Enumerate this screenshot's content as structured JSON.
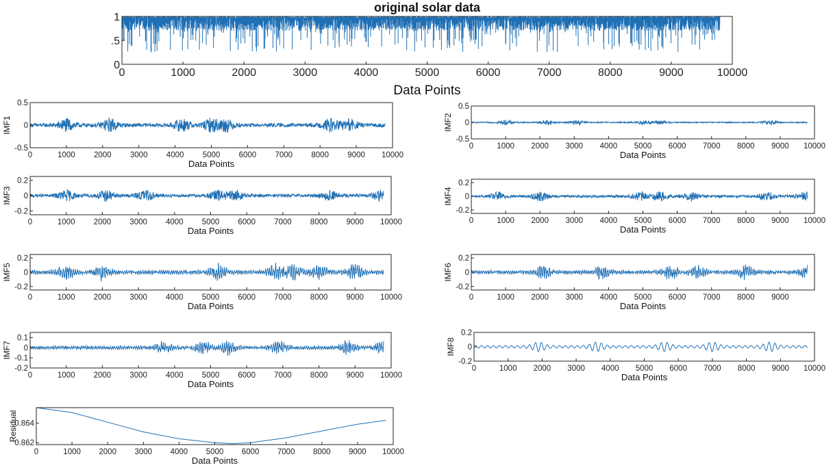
{
  "chart_data": [
    {
      "id": "original",
      "type": "line",
      "title": "original solar data",
      "xlabel": "Data Points",
      "ylabel": "",
      "xlim": [
        0,
        10000
      ],
      "ylim": [
        0,
        1
      ],
      "xticks": [
        0,
        1000,
        2000,
        3000,
        4000,
        5000,
        6000,
        7000,
        8000,
        9000,
        10000
      ],
      "xtick_labels": [
        "0",
        "1000",
        "2000",
        "3000",
        "4000",
        "5000",
        "6000",
        "7000",
        "8000",
        "9000",
        "10000"
      ],
      "yticks": [
        0,
        0.5,
        1
      ],
      "ytick_labels": [
        "0",
        ".5",
        "1"
      ],
      "n_points": 9800,
      "signal": "spiky",
      "amplitude": 0.75,
      "color": "#1f6fb4"
    },
    {
      "id": "imf1",
      "type": "line",
      "xlabel": "Data Points",
      "ylabel": "IMF1",
      "xlim": [
        0,
        10000
      ],
      "ylim": [
        -0.5,
        0.5
      ],
      "xticks": [
        0,
        1000,
        2000,
        3000,
        4000,
        5000,
        6000,
        7000,
        8000,
        9000,
        10000
      ],
      "xtick_labels": [
        "0",
        "1000",
        "2000",
        "3000",
        "4000",
        "5000",
        "6000",
        "7000",
        "8000",
        "9000",
        "10000"
      ],
      "yticks": [
        -0.5,
        0,
        0.5
      ],
      "ytick_labels": [
        "-0.5",
        "0",
        "0.5"
      ],
      "n_points": 9800,
      "signal": "noise",
      "amplitude": 0.2,
      "bursts": [
        1000,
        2200,
        4200,
        5000,
        5400,
        8300,
        8800
      ],
      "color": "#1f6fb4"
    },
    {
      "id": "imf2",
      "type": "line",
      "xlabel": "Data Points",
      "ylabel": "IMF2",
      "xlim": [
        0,
        10000
      ],
      "ylim": [
        -0.5,
        0.5
      ],
      "xticks": [
        0,
        1000,
        2000,
        3000,
        4000,
        5000,
        6000,
        7000,
        8000,
        9000,
        10000
      ],
      "xtick_labels": [
        "0",
        "1000",
        "2000",
        "3000",
        "4000",
        "5000",
        "6000",
        "7000",
        "8000",
        "9000",
        "10000"
      ],
      "yticks": [
        -0.5,
        0,
        0.5
      ],
      "ytick_labels": [
        "-0.5",
        "0",
        "0.5"
      ],
      "n_points": 9800,
      "signal": "noise",
      "amplitude": 0.09,
      "bursts": [
        1000,
        2200,
        3100,
        5000,
        5500,
        8700
      ],
      "color": "#1f6fb4"
    },
    {
      "id": "imf3",
      "type": "line",
      "xlabel": "Data Points",
      "ylabel": "IMF3",
      "xlim": [
        0,
        10000
      ],
      "ylim": [
        -0.25,
        0.25
      ],
      "xticks": [
        0,
        1000,
        2000,
        3000,
        4000,
        5000,
        6000,
        7000,
        8000,
        9000,
        10000
      ],
      "xtick_labels": [
        "0",
        "1000",
        "2000",
        "3000",
        "4000",
        "5000",
        "6000",
        "7000",
        "8000",
        "9000",
        "10000"
      ],
      "yticks": [
        -0.2,
        0,
        0.2
      ],
      "ytick_labels": [
        "-0.2",
        "0",
        "0.2"
      ],
      "n_points": 9800,
      "signal": "noise",
      "amplitude": 0.1,
      "bursts": [
        1000,
        2100,
        3200,
        5200,
        5700,
        8300,
        9700
      ],
      "color": "#1f6fb4"
    },
    {
      "id": "imf4",
      "type": "line",
      "xlabel": "Data Points",
      "ylabel": "IMF4",
      "xlim": [
        0,
        10000
      ],
      "ylim": [
        -0.25,
        0.25
      ],
      "xticks": [
        0,
        1000,
        2000,
        3000,
        4000,
        5000,
        6000,
        7000,
        8000,
        9000,
        10000
      ],
      "xtick_labels": [
        "0",
        "1000",
        "2000",
        "3000",
        "4000",
        "5000",
        "6000",
        "7000",
        "8000",
        "9000",
        "10000"
      ],
      "yticks": [
        -0.2,
        0,
        0.2
      ],
      "ytick_labels": [
        "-0.2",
        "0",
        "0.2"
      ],
      "n_points": 9800,
      "signal": "noise",
      "amplitude": 0.09,
      "bursts": [
        800,
        2000,
        4900,
        5500,
        6400,
        8600,
        9700
      ],
      "color": "#1f6fb4"
    },
    {
      "id": "imf5",
      "type": "line",
      "xlabel": "Data  Points",
      "ylabel": "IMF5",
      "xlim": [
        0,
        10000
      ],
      "ylim": [
        -0.25,
        0.25
      ],
      "xticks": [
        0,
        1000,
        2000,
        3000,
        4000,
        5000,
        6000,
        7000,
        8000,
        9000,
        10000
      ],
      "xtick_labels": [
        "0",
        "1000",
        "2000",
        "3000",
        "4000",
        "5000",
        "6000",
        "7000",
        "8000",
        "9000",
        "10000"
      ],
      "yticks": [
        -0.2,
        0,
        0.2
      ],
      "ytick_labels": [
        "-0.2",
        "0",
        "0.2"
      ],
      "n_points": 9800,
      "signal": "oscillation",
      "amplitude": 0.1,
      "bursts": [
        1000,
        2000,
        5200,
        6800,
        7300,
        8000,
        9000
      ],
      "color": "#1f6fb4"
    },
    {
      "id": "imf6",
      "type": "line",
      "xlabel": "Data  Points",
      "ylabel": "IMF6",
      "xlim": [
        0,
        10000
      ],
      "ylim": [
        -0.25,
        0.25
      ],
      "xticks": [
        0,
        1000,
        2000,
        3000,
        4000,
        5000,
        6000,
        7000,
        8000,
        9000
      ],
      "xtick_labels": [
        "0",
        "1000",
        "2000",
        "3000",
        "4000",
        "5000",
        "6000",
        "7000",
        "8000",
        "9000"
      ],
      "yticks": [
        -0.2,
        0,
        0.2
      ],
      "ytick_labels": [
        "-0.2",
        "0",
        "0.2"
      ],
      "n_points": 9800,
      "signal": "oscillation",
      "amplitude": 0.09,
      "bursts": [
        2100,
        3800,
        5800,
        6600,
        8000,
        9800
      ],
      "color": "#1f6fb4"
    },
    {
      "id": "imf7",
      "type": "line",
      "xlabel": "Data Points",
      "ylabel": "IMF7",
      "xlim": [
        0,
        10000
      ],
      "ylim": [
        -0.2,
        0.15
      ],
      "xticks": [
        0,
        1000,
        2000,
        3000,
        4000,
        5000,
        6000,
        7000,
        8000,
        9000,
        10000
      ],
      "xtick_labels": [
        "0",
        "1000",
        "2000",
        "3000",
        "4000",
        "5000",
        "6000",
        "7000",
        "8000",
        "9000",
        "10000"
      ],
      "yticks": [
        -0.2,
        -0.1,
        0,
        0.1
      ],
      "ytick_labels": [
        "-0.2",
        "-0.1",
        "0",
        "0.1"
      ],
      "n_points": 9800,
      "signal": "oscillation",
      "amplitude": 0.06,
      "bursts": [
        3700,
        4800,
        5500,
        6900,
        8800,
        9800
      ],
      "color": "#1f6fb4"
    },
    {
      "id": "imf8",
      "type": "line",
      "xlabel": "Data Points",
      "ylabel": "IMF8",
      "xlim": [
        0,
        10000
      ],
      "ylim": [
        -0.2,
        0.2
      ],
      "xticks": [
        0,
        1000,
        2000,
        3000,
        4000,
        5000,
        6000,
        7000,
        8000,
        9000,
        10000
      ],
      "xtick_labels": [
        "0",
        "1000",
        "2000",
        "3000",
        "4000",
        "5000",
        "6000",
        "7000",
        "8000",
        "9000",
        "10000"
      ],
      "yticks": [
        -0.2,
        0,
        0.2
      ],
      "ytick_labels": [
        "-0.2",
        "0",
        "0.2"
      ],
      "n_points": 9800,
      "signal": "smooth-oscillation",
      "amplitude": 0.1,
      "bursts": [
        1900,
        3600,
        5600,
        7000,
        8700
      ],
      "color": "#1f6fb4"
    },
    {
      "id": "residual",
      "type": "line",
      "xlabel": "Data Points",
      "ylabel": "Residual",
      "xlim": [
        0,
        10000
      ],
      "ylim": [
        0.8618,
        0.8656
      ],
      "xticks": [
        0,
        1000,
        2000,
        3000,
        4000,
        5000,
        6000,
        7000,
        8000,
        9000,
        10000
      ],
      "xtick_labels": [
        "0",
        "1000",
        "2000",
        "3000",
        "4000",
        "5000",
        "6000",
        "7000",
        "8000",
        "9000",
        "10000"
      ],
      "yticks": [
        0.862,
        0.864
      ],
      "ytick_labels": [
        "0.862",
        "0.864"
      ],
      "x": [
        0,
        1000,
        2000,
        3000,
        4000,
        5000,
        5500,
        6000,
        7000,
        8000,
        9000,
        9800
      ],
      "y": [
        0.8656,
        0.8651,
        0.8641,
        0.8631,
        0.8624,
        0.862,
        0.8619,
        0.862,
        0.8625,
        0.8632,
        0.8639,
        0.8643
      ],
      "color": "#1f6fb4"
    }
  ]
}
